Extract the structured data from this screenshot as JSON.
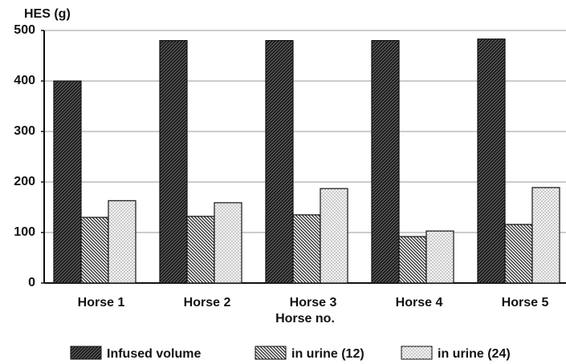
{
  "chart_data": {
    "type": "bar",
    "ylabel": "HES (g)",
    "xlabel": "Horse no.",
    "categories": [
      "Horse 1",
      "Horse 2",
      "Horse 3",
      "Horse 4",
      "Horse 5"
    ],
    "series": [
      {
        "name": "Infused volume",
        "color": "#1a1a1a",
        "values": [
          400,
          480,
          480,
          480,
          483
        ]
      },
      {
        "name": "in urine (12)",
        "color": "#333333",
        "values": [
          130,
          132,
          135,
          92,
          116
        ]
      },
      {
        "name": "in urine (24)",
        "color": "#8a8a8a",
        "values": [
          163,
          159,
          187,
          103,
          189
        ]
      }
    ],
    "ylim": [
      0,
      500
    ],
    "yticks": [
      0,
      100,
      200,
      300,
      400,
      500
    ],
    "grid": true,
    "legend": "bottom"
  }
}
